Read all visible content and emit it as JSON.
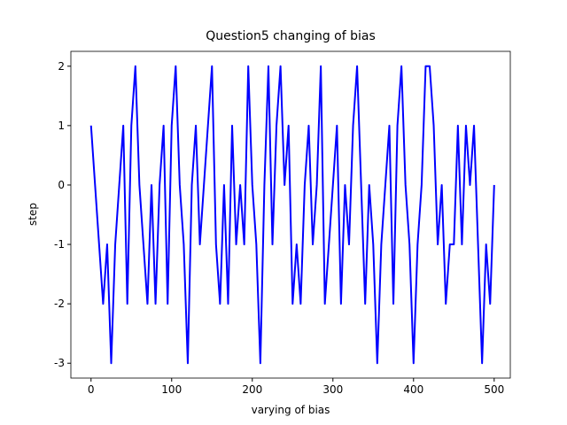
{
  "chart_data": {
    "type": "line",
    "title": "Question5 changing of bias",
    "x_label": "varying of bias",
    "y_label": "step",
    "x": [
      0,
      5,
      10,
      15,
      20,
      25,
      30,
      35,
      40,
      45,
      50,
      55,
      60,
      65,
      70,
      75,
      80,
      85,
      90,
      95,
      100,
      105,
      110,
      115,
      120,
      125,
      130,
      135,
      140,
      145,
      150,
      155,
      160,
      165,
      170,
      175,
      180,
      185,
      190,
      195,
      200,
      205,
      210,
      215,
      220,
      225,
      230,
      235,
      240,
      245,
      250,
      255,
      260,
      265,
      270,
      275,
      280,
      285,
      290,
      295,
      300,
      305,
      310,
      315,
      320,
      325,
      330,
      335,
      340,
      345,
      350,
      355,
      360,
      365,
      370,
      375,
      380,
      385,
      390,
      395,
      400,
      405,
      410,
      415,
      420,
      425,
      430,
      435,
      440,
      445,
      450,
      455,
      460,
      465,
      470,
      475,
      480,
      485,
      490,
      495,
      500
    ],
    "series": [
      {
        "name": "bias",
        "color": "#0000ff",
        "values": [
          1,
          0,
          -1,
          -2,
          -1,
          -3,
          -1,
          0,
          1,
          -2,
          1,
          2,
          0,
          -1,
          -2,
          0,
          -2,
          0,
          1,
          -2,
          1,
          2,
          0,
          -1,
          -3,
          0,
          1,
          -1,
          0,
          1,
          2,
          -1,
          -2,
          0,
          -2,
          1,
          -1,
          0,
          -1,
          2,
          0,
          -1,
          -3,
          0,
          2,
          -1,
          1,
          2,
          0,
          1,
          -2,
          -1,
          -2,
          0,
          1,
          -1,
          0,
          2,
          -2,
          -1,
          0,
          1,
          -2,
          0,
          -1,
          1,
          2,
          0,
          -2,
          0,
          -1,
          -3,
          -1,
          0,
          1,
          -2,
          1,
          2,
          0,
          -1,
          -3,
          -1,
          0,
          2,
          2,
          1,
          -1,
          0,
          -2,
          -1,
          -1,
          1,
          -1,
          1,
          0,
          1,
          -1,
          -3,
          -1,
          -2,
          0
        ]
      }
    ],
    "xlim": [
      -25,
      520
    ],
    "ylim": [
      -3.25,
      2.25
    ],
    "xticks": [
      0,
      100,
      200,
      300,
      400,
      500
    ],
    "yticks": [
      -3,
      -2,
      -1,
      0,
      1,
      2
    ]
  }
}
